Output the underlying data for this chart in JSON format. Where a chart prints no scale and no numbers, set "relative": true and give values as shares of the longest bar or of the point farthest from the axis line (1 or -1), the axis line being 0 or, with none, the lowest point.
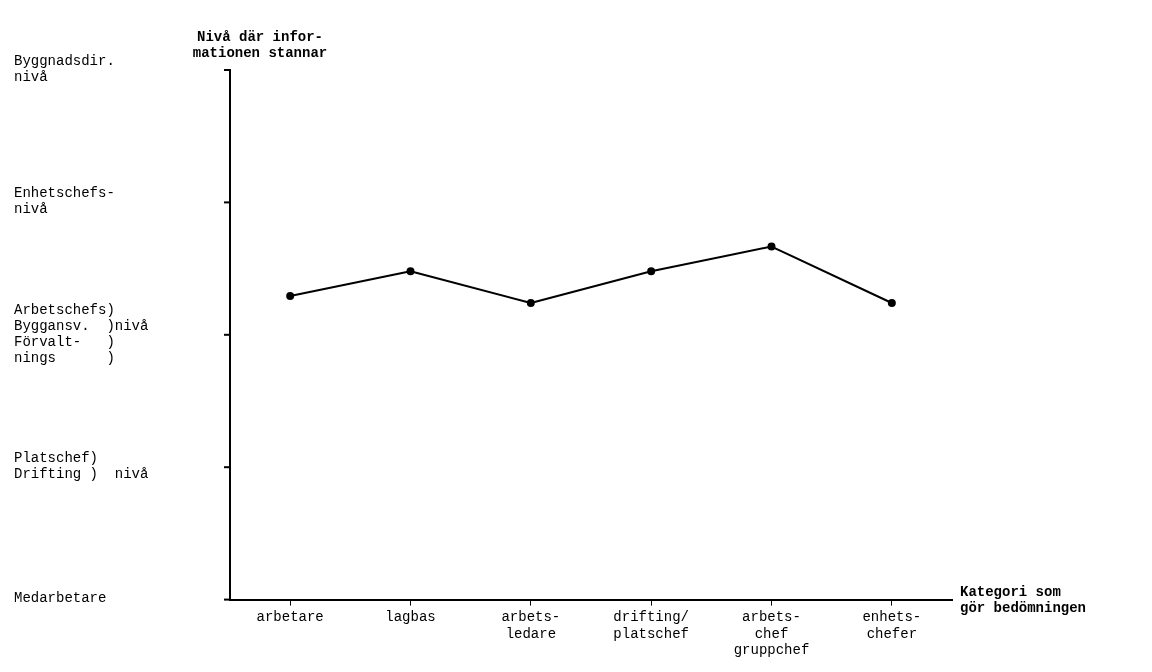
{
  "chart_data": {
    "type": "line",
    "relative": true,
    "title": "Nivå där infor-\nmationen stannar",
    "xlabel": "Kategori som\ngör bedömningen",
    "categories": [
      "arbetare",
      "lagbas",
      "arbets-\nledare",
      "drifting/\nplatschef",
      "arbets-\nchef\ngruppchef",
      "enhets-\nchefer"
    ],
    "series": [
      {
        "color": "#000000",
        "values": [
          0.86,
          0.93,
          0.84,
          0.93,
          1,
          0.84
        ]
      }
    ],
    "annotations": [
      "Byggnadsdir.\nnivå",
      "Enhetschefs-\nnivå",
      "Arbetschefs)\nByggansv.  )nivå\nFörvalt-   )\nnings      )",
      "Platschef)\nDrifting )  nivå",
      "Medarbetare"
    ],
    "grid": false,
    "legend": false,
    "marker": "circle",
    "line_style": "solid"
  }
}
